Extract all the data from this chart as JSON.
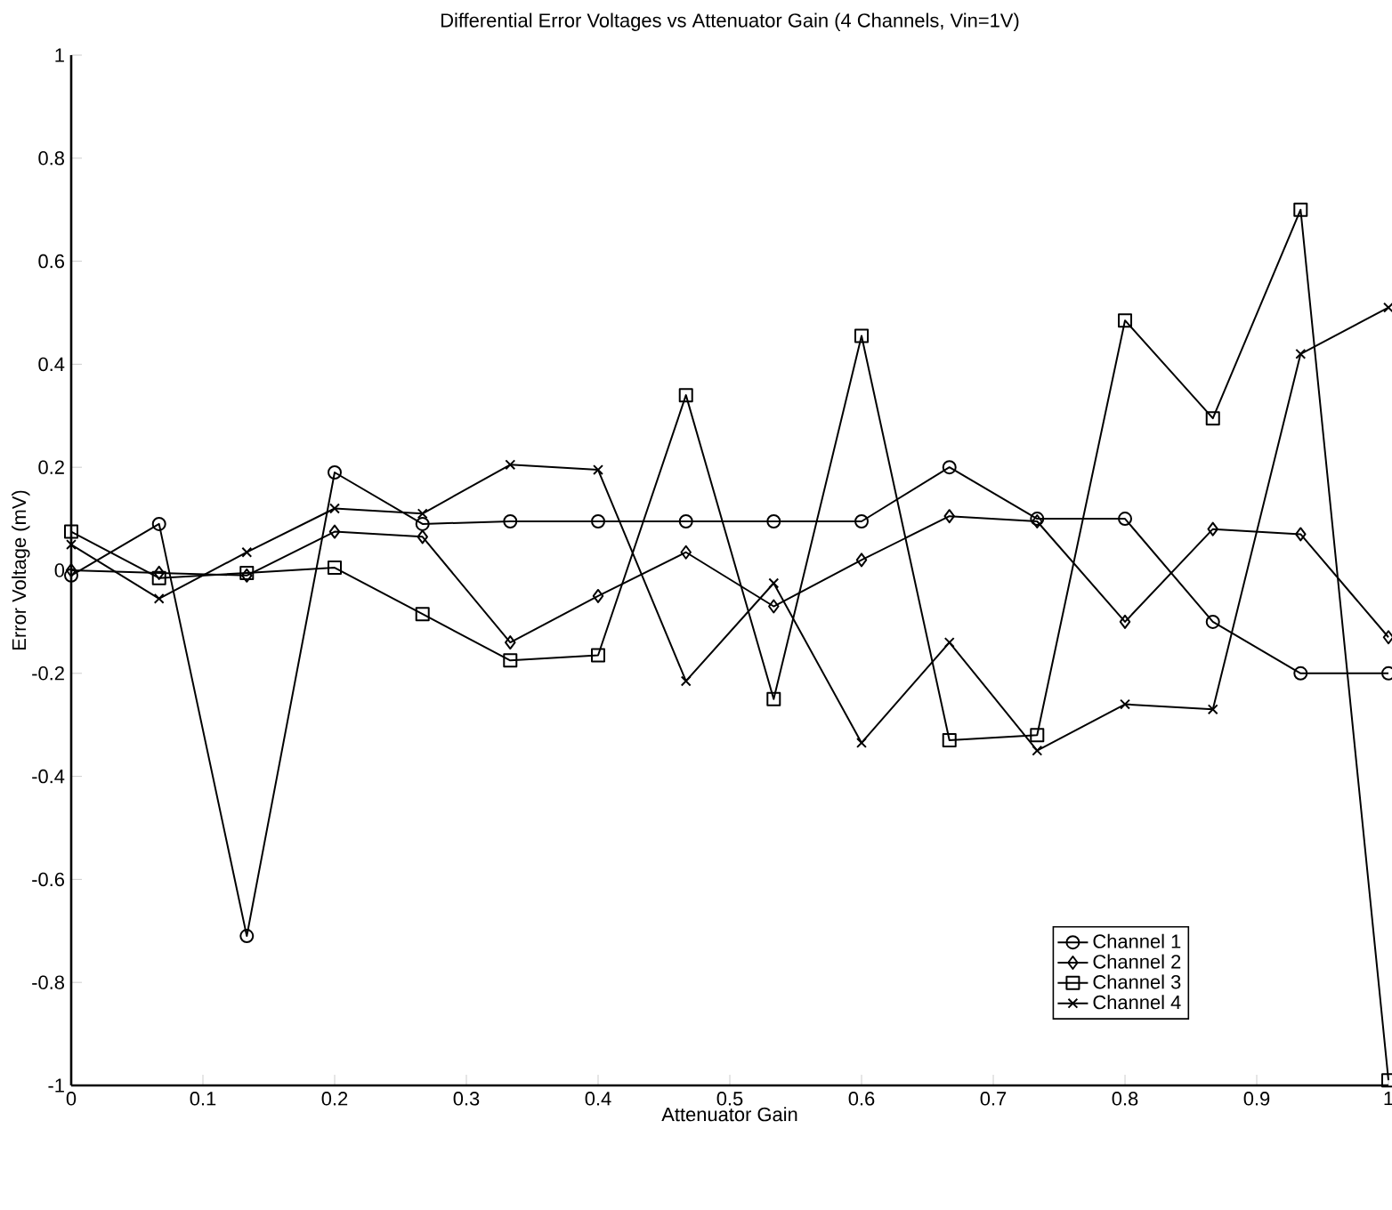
{
  "chart_data": {
    "type": "line",
    "title": "Differential Error Voltages vs Attenuator Gain (4 Channels, Vin=1V)",
    "xlabel": "Attenuator Gain",
    "ylabel": "Error Voltage (mV)",
    "x": [
      0,
      0.0667,
      0.1333,
      0.2,
      0.2667,
      0.3333,
      0.4,
      0.4667,
      0.5333,
      0.6,
      0.6667,
      0.7333,
      0.8,
      0.8667,
      0.9333,
      1
    ],
    "series": [
      {
        "name": "Channel 1",
        "color": "#000000",
        "marker": "circle",
        "values": [
          -0.01,
          0.09,
          -0.71,
          0.19,
          0.09,
          0.095,
          0.095,
          0.095,
          0.095,
          0.095,
          0.2,
          0.1,
          0.1,
          -0.1,
          -0.2,
          -0.2
        ]
      },
      {
        "name": "Channel 2",
        "color": "#000000",
        "marker": "diamond",
        "values": [
          0,
          -0.005,
          -0.01,
          0.075,
          0.065,
          -0.14,
          -0.05,
          0.035,
          -0.07,
          0.02,
          0.105,
          0.095,
          -0.1,
          0.08,
          0.07,
          -0.13
        ]
      },
      {
        "name": "Channel 3",
        "color": "#000000",
        "marker": "square",
        "values": [
          0.075,
          -0.015,
          -0.005,
          0.005,
          -0.085,
          -0.175,
          -0.165,
          0.34,
          -0.25,
          0.455,
          -0.33,
          -0.32,
          0.485,
          0.295,
          0.7,
          -0.99
        ]
      },
      {
        "name": "Channel 4",
        "color": "#000000",
        "marker": "cross",
        "values": [
          0.05,
          -0.055,
          0.035,
          0.12,
          0.11,
          0.205,
          0.195,
          -0.215,
          -0.025,
          -0.335,
          -0.14,
          -0.35,
          -0.26,
          -0.27,
          0.42,
          0.51
        ]
      }
    ],
    "xlim": [
      0,
      1
    ],
    "ylim": [
      -1,
      1
    ],
    "xticks": [
      0,
      0.1,
      0.2,
      0.3,
      0.4,
      0.5,
      0.6,
      0.7,
      0.8,
      0.9,
      1
    ],
    "yticks": [
      -1,
      -0.8,
      -0.6,
      -0.4,
      -0.2,
      0,
      0.2,
      0.4,
      0.6,
      0.8,
      1
    ],
    "legend": "bottom right",
    "grid": false,
    "line_style": "solid"
  }
}
